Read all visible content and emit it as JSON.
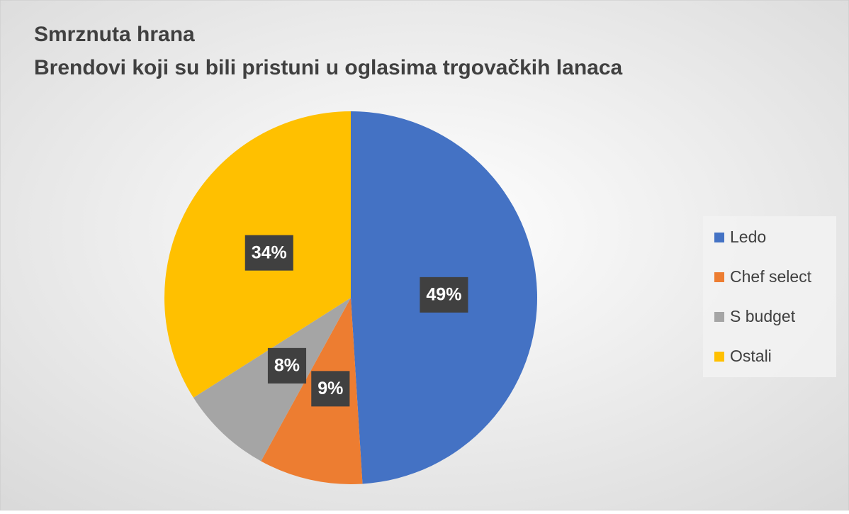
{
  "chart_data": {
    "type": "pie",
    "title": "Smrznuta hrana",
    "subtitle": "Brendovi koji su bili pristuni u oglasima trgovačkih lanaca",
    "categories": [
      "Ledo",
      "Chef select",
      "S budget",
      "Ostali"
    ],
    "values": [
      49,
      9,
      8,
      34
    ],
    "value_labels": [
      "49%",
      "9%",
      "8%",
      "34%"
    ],
    "colors": [
      "#4472c4",
      "#ed7d31",
      "#a5a5a5",
      "#ffc000"
    ],
    "legend": "right"
  }
}
